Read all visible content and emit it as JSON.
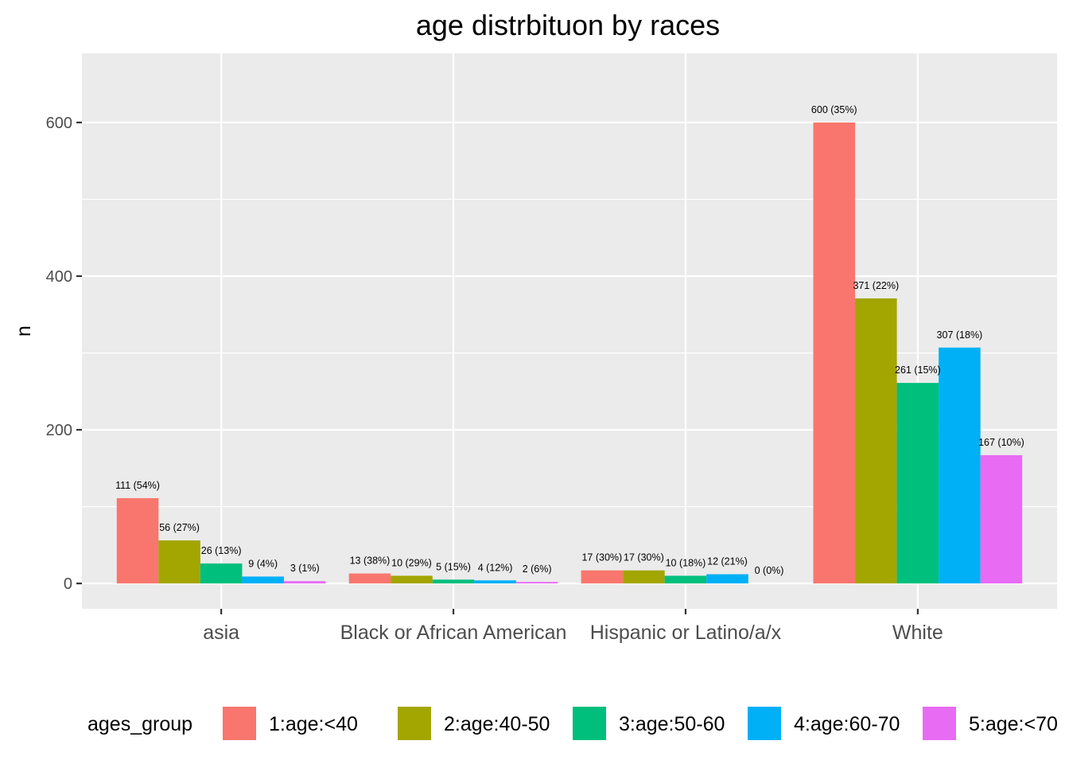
{
  "chart_data": {
    "type": "bar",
    "title": "age distrbituon by races",
    "xlabel": "",
    "ylabel": "n",
    "ylim": [
      -33,
      690
    ],
    "yticks": [
      0,
      200,
      400,
      600
    ],
    "categories": [
      "asia",
      "Black or African American",
      "Hispanic or Latino/a/x",
      "White"
    ],
    "legend_title": "ages_group",
    "legend_position": "bottom",
    "series": [
      {
        "name": "1:age:<40",
        "color": "#F8766D",
        "values": [
          111,
          13,
          17,
          600
        ],
        "labels": [
          "111 (54%)",
          "13 (38%)",
          "17 (30%)",
          "600 (35%)"
        ]
      },
      {
        "name": "2:age:40-50",
        "color": "#A3A500",
        "values": [
          56,
          10,
          17,
          371
        ],
        "labels": [
          "56 (27%)",
          "10 (29%)",
          "17 (30%)",
          "371 (22%)"
        ]
      },
      {
        "name": "3:age:50-60",
        "color": "#00BF7D",
        "values": [
          26,
          5,
          10,
          261
        ],
        "labels": [
          "26 (13%)",
          "5 (15%)",
          "10 (18%)",
          "261 (15%)"
        ]
      },
      {
        "name": "4:age:60-70",
        "color": "#00B0F6",
        "values": [
          9,
          4,
          12,
          307
        ],
        "labels": [
          "9 (4%)",
          "4 (12%)",
          "12 (21%)",
          "307 (18%)"
        ]
      },
      {
        "name": "5:age:<70",
        "color": "#E76BF3",
        "values": [
          3,
          2,
          0,
          167
        ],
        "labels": [
          "3 (1%)",
          "2 (6%)",
          "0 (0%)",
          "167 (10%)"
        ]
      }
    ],
    "panel_background": "#EBEBEB",
    "grid_color": "#FFFFFF"
  }
}
